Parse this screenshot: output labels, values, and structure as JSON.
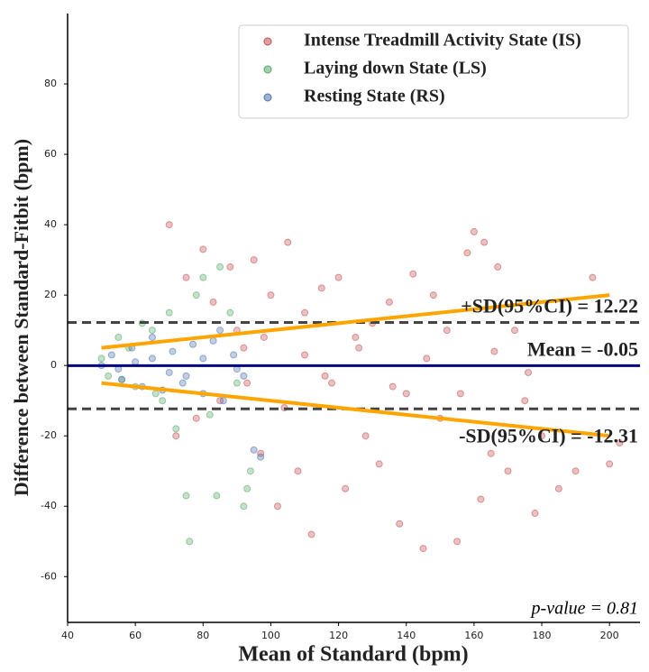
{
  "chart_data": {
    "type": "scatter",
    "xlabel": "Mean of Standard (bpm)",
    "ylabel": "Difference between Standard-Fitbit (bpm)",
    "xlim": [
      40,
      209
    ],
    "ylim": [
      -73,
      100
    ],
    "xticks": [
      40,
      60,
      80,
      100,
      120,
      140,
      160,
      180,
      200
    ],
    "yticks": [
      -60,
      -40,
      -20,
      0,
      20,
      40,
      60,
      80
    ],
    "grid": false,
    "legend": "upper right",
    "alpha": 0.35,
    "series": [
      {
        "name": "Intense Treadmill Activity State (IS)",
        "color": "#c44e52",
        "x": [
          70,
          72,
          75,
          78,
          80,
          83,
          85,
          88,
          90,
          92,
          95,
          97,
          100,
          102,
          105,
          108,
          110,
          112,
          115,
          118,
          120,
          122,
          125,
          128,
          130,
          132,
          135,
          138,
          140,
          142,
          145,
          148,
          150,
          152,
          155,
          158,
          160,
          162,
          163,
          165,
          167,
          170,
          172,
          175,
          178,
          180,
          185,
          190,
          195,
          200,
          203,
          93,
          98,
          104,
          110,
          116,
          126,
          136,
          146,
          156,
          166,
          176
        ],
        "values": [
          40,
          -20,
          25,
          -15,
          33,
          18,
          -10,
          28,
          10,
          5,
          30,
          -25,
          20,
          -40,
          35,
          -30,
          15,
          -48,
          22,
          -5,
          25,
          -35,
          8,
          -20,
          12,
          -28,
          18,
          -45,
          -8,
          26,
          -52,
          20,
          -15,
          10,
          -50,
          32,
          38,
          -38,
          35,
          -25,
          28,
          -30,
          10,
          -10,
          -42,
          -20,
          -35,
          -30,
          25,
          -28,
          -22,
          -5,
          8,
          -12,
          3,
          -3,
          5,
          -6,
          2,
          -8,
          4,
          -2
        ]
      },
      {
        "name": "Laying down State (LS)",
        "color": "#55a868",
        "x": [
          50,
          52,
          55,
          58,
          60,
          62,
          65,
          68,
          70,
          72,
          75,
          78,
          80,
          82,
          85,
          88,
          90,
          92,
          93,
          94,
          76,
          84,
          66,
          56
        ],
        "values": [
          2,
          -3,
          8,
          5,
          -6,
          12,
          10,
          -10,
          15,
          -18,
          -37,
          20,
          25,
          -14,
          28,
          15,
          -5,
          -40,
          -35,
          -30,
          -50,
          -37,
          -8,
          -4
        ]
      },
      {
        "name": "Resting State (RS)",
        "color": "#4c72b0",
        "x": [
          50,
          53,
          56,
          59,
          62,
          65,
          68,
          71,
          74,
          77,
          80,
          83,
          86,
          89,
          92,
          95,
          60,
          70,
          80,
          90,
          55,
          65,
          75,
          85,
          97
        ],
        "values": [
          0,
          3,
          -4,
          5,
          -6,
          8,
          -7,
          4,
          -5,
          6,
          -8,
          7,
          -10,
          3,
          -3,
          -24,
          1,
          -2,
          2,
          -1,
          -1,
          2,
          -3,
          10,
          -26
        ]
      }
    ],
    "reference_lines": [
      {
        "value": 12.22,
        "color": "#444444",
        "dashed": true
      },
      {
        "value": -0.05,
        "color": "#000080",
        "dashed": false
      },
      {
        "value": -12.31,
        "color": "#444444",
        "dashed": true
      }
    ],
    "trend_lines": [
      {
        "color": "#ffa500",
        "x": [
          50,
          200
        ],
        "values": [
          5,
          20
        ]
      },
      {
        "color": "#ffa500",
        "x": [
          50,
          200
        ],
        "values": [
          -5,
          -20
        ]
      }
    ],
    "annotations": [
      "+SD(95%CI) = 12.22",
      "Mean = -0.05",
      "-SD(95%CI) = -12.31"
    ],
    "p_value_text": "p-value = 0.81"
  }
}
